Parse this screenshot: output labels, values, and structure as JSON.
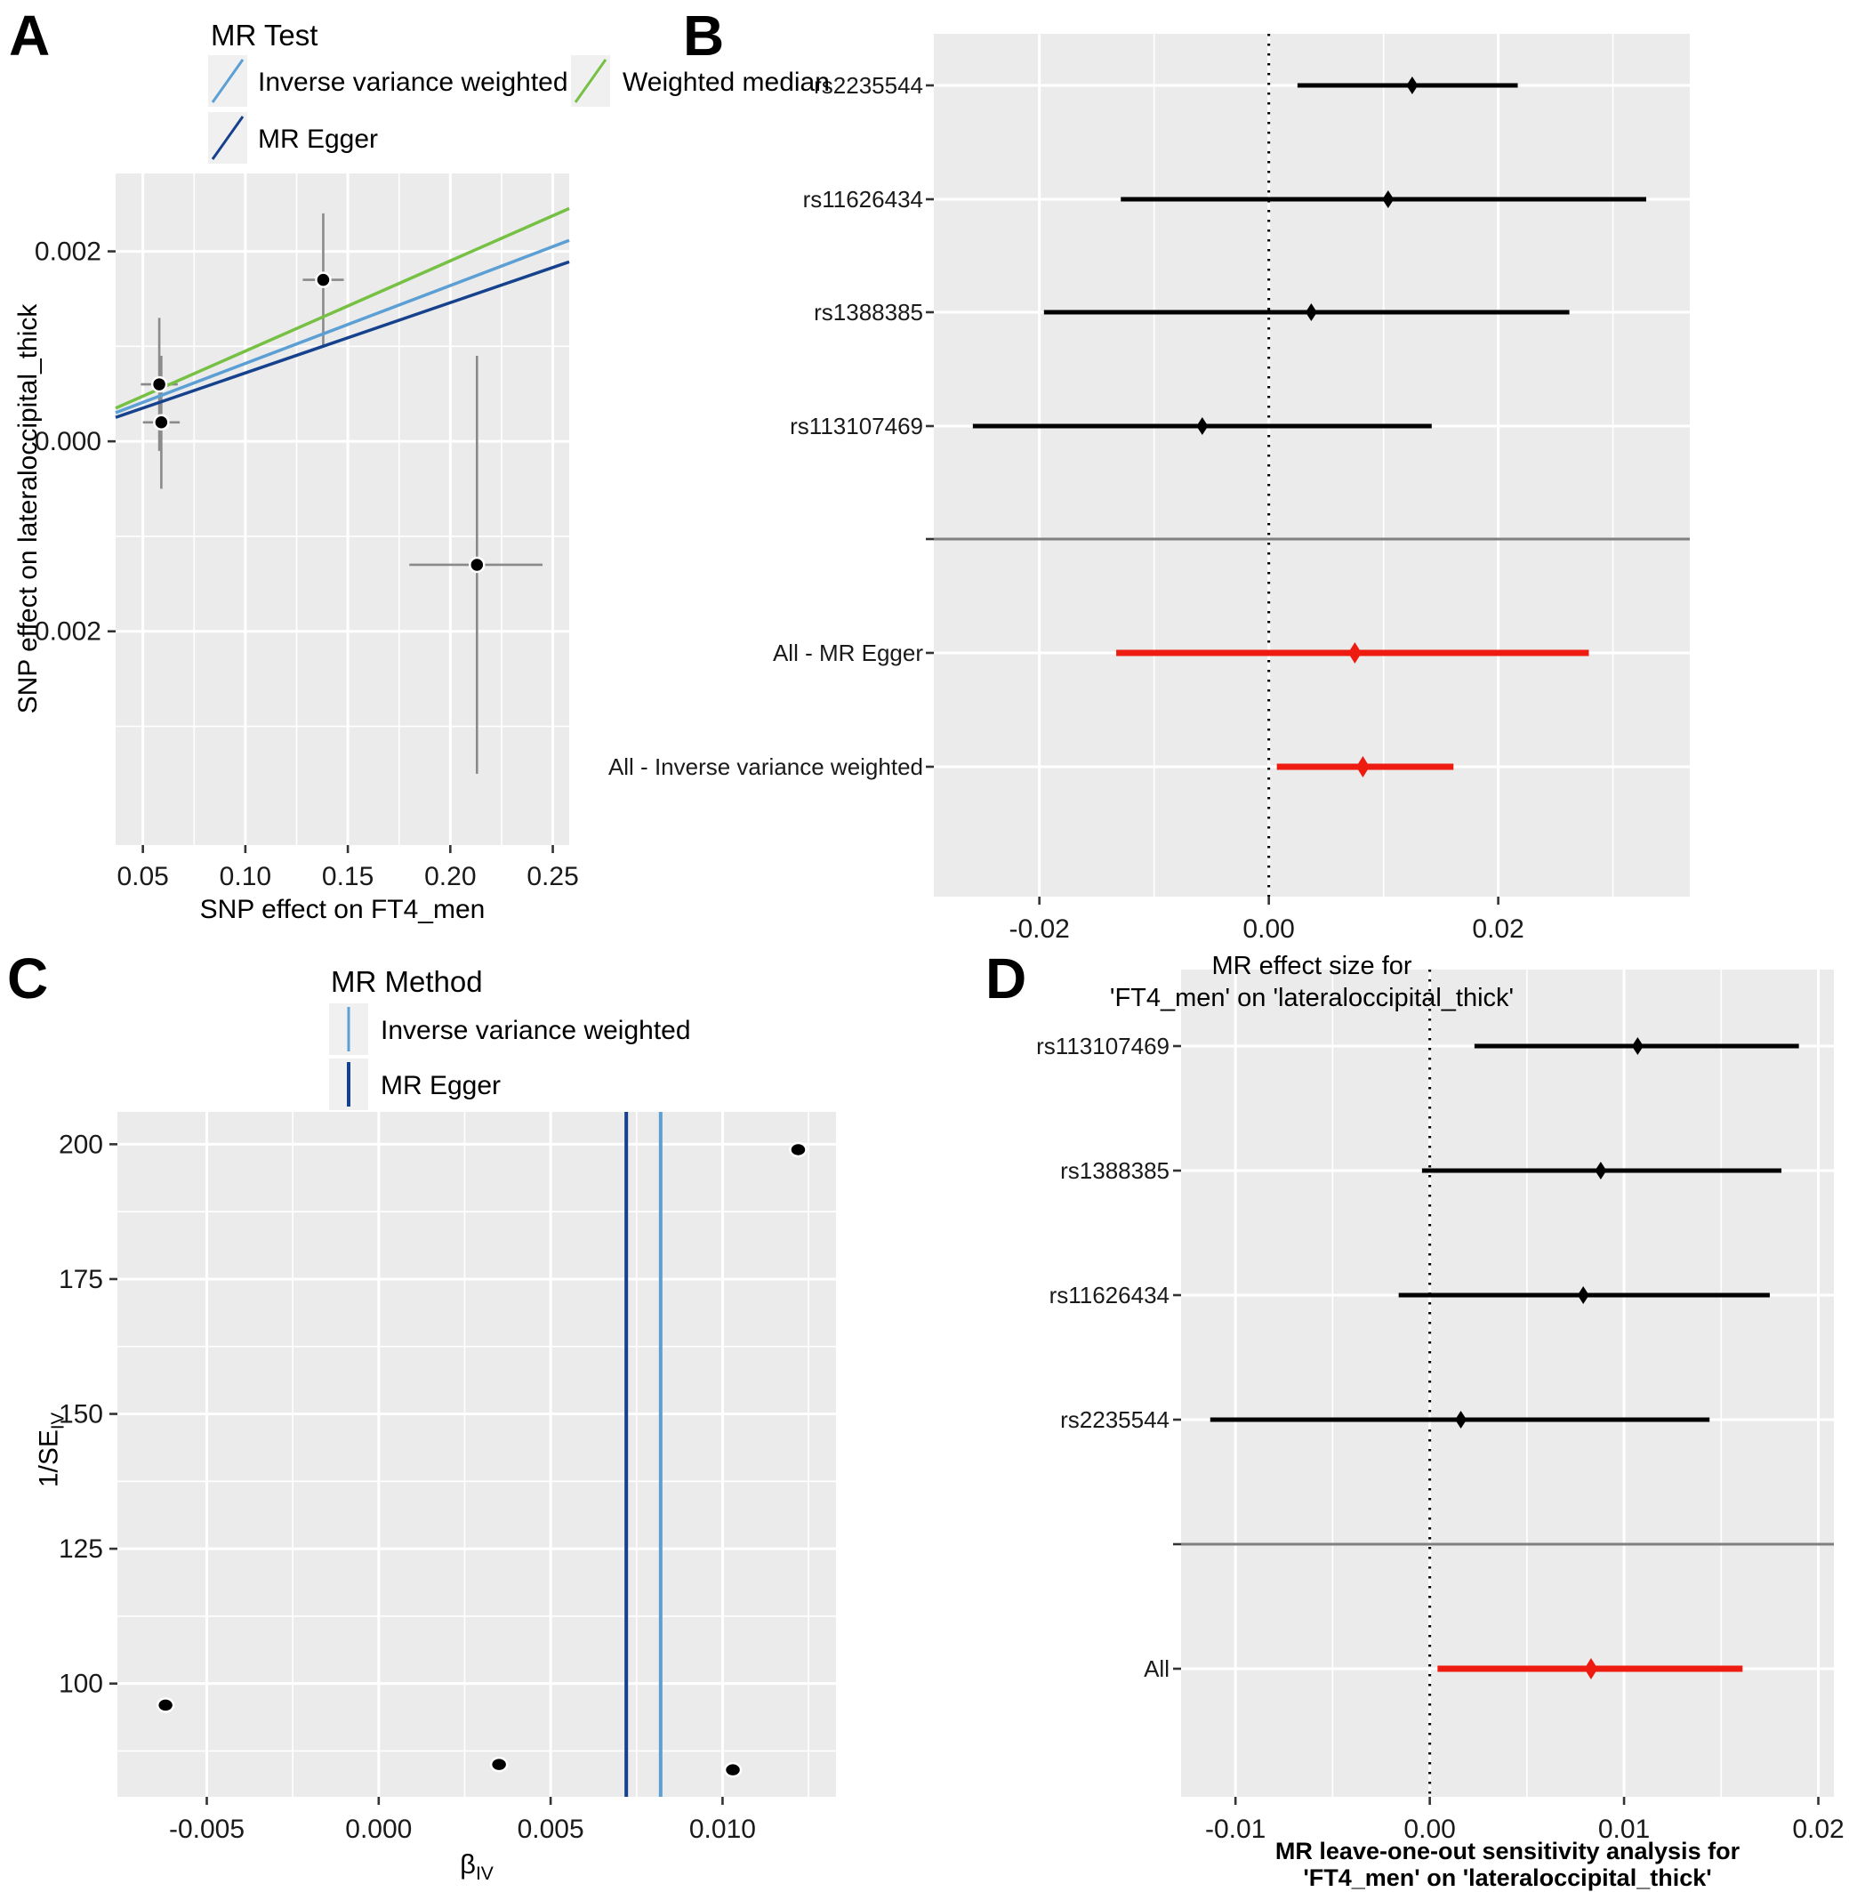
{
  "colors": {
    "ivw": "#5b9fd4",
    "egger": "#16418c",
    "wm": "#76c043",
    "all_red": "#ee1c10",
    "point": "#000000",
    "panel_bg": "#ebebeb",
    "grid": "#ffffff",
    "errbar": "#8a8a8a",
    "separator": "#7f7f7f",
    "tick_text": "#1a1a1a"
  },
  "panels": {
    "a_letter": "A",
    "b_letter": "B",
    "c_letter": "C",
    "d_letter": "D"
  },
  "legend_a": {
    "title": "MR Test",
    "items": [
      {
        "label": "Inverse variance weighted",
        "color_key": "ivw"
      },
      {
        "label": "Weighted median",
        "color_key": "wm"
      },
      {
        "label": "MR Egger",
        "color_key": "egger"
      }
    ]
  },
  "legend_c": {
    "title": "MR Method",
    "items": [
      {
        "label": "Inverse variance weighted",
        "color_key": "ivw"
      },
      {
        "label": "MR Egger",
        "color_key": "egger"
      }
    ]
  },
  "axis_titles": {
    "a_x": "SNP effect on FT4_men",
    "a_y": "SNP effect on lateraloccipital_thick",
    "b_x1": "MR effect size for",
    "b_x2": "'FT4_men' on 'lateraloccipital_thick'",
    "c_x_main": "β",
    "c_x_sub": "IV",
    "c_y_main": "1/SE",
    "c_y_sub": "IV",
    "d_x1": "MR leave-one-out sensitivity analysis for",
    "d_x2": "'FT4_men' on 'lateraloccipital_thick'"
  },
  "chart_data": [
    {
      "panel": "A",
      "type": "scatter",
      "title": "MR Test",
      "xlabel": "SNP effect on FT4_men",
      "ylabel": "SNP effect on lateraloccipital_thick",
      "xlim": [
        0.0367,
        0.258
      ],
      "ylim": [
        -0.00425,
        0.00282
      ],
      "xticks": [
        {
          "v": 0.05,
          "label": "0.05"
        },
        {
          "v": 0.1,
          "label": "0.10"
        },
        {
          "v": 0.15,
          "label": "0.15"
        },
        {
          "v": 0.2,
          "label": "0.20"
        },
        {
          "v": 0.25,
          "label": "0.25"
        }
      ],
      "yticks": [
        {
          "v": 0.002,
          "label": "0.002"
        },
        {
          "v": 0.0,
          "label": "0.000"
        },
        {
          "v": -0.002,
          "label": "-0.002"
        }
      ],
      "xminor": [
        0.075,
        0.125,
        0.175,
        0.225
      ],
      "yminor": [
        0.001,
        -0.001,
        -0.003
      ],
      "points": [
        {
          "x": 0.058,
          "y": 0.0006,
          "xlo": 0.049,
          "xhi": 0.067,
          "ylo": -0.0001,
          "yhi": 0.0013
        },
        {
          "x": 0.059,
          "y": 0.0002,
          "xlo": 0.05,
          "xhi": 0.068,
          "ylo": -0.0005,
          "yhi": 0.0009
        },
        {
          "x": 0.138,
          "y": 0.0017,
          "xlo": 0.128,
          "xhi": 0.148,
          "ylo": 0.001,
          "yhi": 0.0024
        },
        {
          "x": 0.213,
          "y": -0.0013,
          "xlo": 0.18,
          "xhi": 0.245,
          "ylo": -0.0035,
          "yhi": 0.0009
        }
      ],
      "lines": [
        {
          "method": "Inverse variance weighted",
          "slope": 0.0082,
          "intercept": 0.0,
          "color_key": "ivw"
        },
        {
          "method": "MR Egger",
          "slope": 0.0074,
          "intercept": -2e-05,
          "color_key": "egger"
        },
        {
          "method": "Weighted median",
          "slope": 0.0095,
          "intercept": 0.0,
          "color_key": "wm"
        }
      ]
    },
    {
      "panel": "B",
      "type": "forest",
      "xlabel_lines": [
        "MR effect size for",
        "'FT4_men' on 'lateraloccipital_thick'"
      ],
      "xlim": [
        -0.0292,
        0.0367
      ],
      "zero_line": 0.0,
      "xticks": [
        {
          "v": -0.02,
          "label": "-0.02"
        },
        {
          "v": 0.0,
          "label": "0.00"
        },
        {
          "v": 0.02,
          "label": "0.02"
        }
      ],
      "xminor": [
        -0.01,
        0.01,
        0.03
      ],
      "rows": [
        {
          "label": "rs2235544",
          "b": 0.0125,
          "lo": 0.0025,
          "hi": 0.0217,
          "color_key": "point"
        },
        {
          "label": "rs11626434",
          "b": 0.0104,
          "lo": -0.0129,
          "hi": 0.0329,
          "color_key": "point"
        },
        {
          "label": "rs1388385",
          "b": 0.0037,
          "lo": -0.0196,
          "hi": 0.0262,
          "color_key": "point"
        },
        {
          "label": "rs113107469",
          "b": -0.0058,
          "lo": -0.0258,
          "hi": 0.0142,
          "color_key": "point"
        },
        {
          "label": "",
          "separator": true
        },
        {
          "label": "All - MR Egger",
          "b": 0.0075,
          "lo": -0.0133,
          "hi": 0.0279,
          "color_key": "all_red"
        },
        {
          "label": "All - Inverse variance weighted",
          "b": 0.0082,
          "lo": 0.0007,
          "hi": 0.0161,
          "color_key": "all_red"
        }
      ]
    },
    {
      "panel": "C",
      "type": "funnel",
      "title": "MR Method",
      "xlim": [
        -0.0076,
        0.0133
      ],
      "ylim": [
        79,
        206
      ],
      "xticks": [
        {
          "v": -0.005,
          "label": "-0.005"
        },
        {
          "v": 0.0,
          "label": "0.000"
        },
        {
          "v": 0.005,
          "label": "0.005"
        },
        {
          "v": 0.01,
          "label": "0.010"
        }
      ],
      "yticks": [
        {
          "v": 100,
          "label": "100"
        },
        {
          "v": 125,
          "label": "125"
        },
        {
          "v": 150,
          "label": "150"
        },
        {
          "v": 175,
          "label": "175"
        },
        {
          "v": 200,
          "label": "200"
        }
      ],
      "xminor": [
        -0.0025,
        0.0025,
        0.0075,
        0.0125
      ],
      "yminor": [
        87.5,
        112.5,
        137.5,
        162.5,
        187.5
      ],
      "points": [
        {
          "x": -0.0062,
          "y": 96
        },
        {
          "x": 0.0035,
          "y": 85
        },
        {
          "x": 0.0103,
          "y": 84
        },
        {
          "x": 0.0122,
          "y": 199
        }
      ],
      "vlines": [
        {
          "method": "MR Egger",
          "x": 0.0072,
          "color_key": "egger"
        },
        {
          "method": "Inverse variance weighted",
          "x": 0.0082,
          "color_key": "ivw"
        }
      ]
    },
    {
      "panel": "D",
      "type": "forest",
      "xlabel_lines": [
        "MR leave-one-out sensitivity analysis for",
        "'FT4_men' on 'lateraloccipital_thick'"
      ],
      "xlim": [
        -0.0128,
        0.0208
      ],
      "zero_line": 0.0,
      "xticks": [
        {
          "v": -0.01,
          "label": "-0.01"
        },
        {
          "v": 0.0,
          "label": "0.00"
        },
        {
          "v": 0.01,
          "label": "0.01"
        },
        {
          "v": 0.02,
          "label": "0.02"
        }
      ],
      "xminor": [
        -0.005,
        0.005,
        0.015
      ],
      "rows": [
        {
          "label": "rs113107469",
          "b": 0.0107,
          "lo": 0.0023,
          "hi": 0.019,
          "color_key": "point"
        },
        {
          "label": "rs1388385",
          "b": 0.0088,
          "lo": -0.0004,
          "hi": 0.0181,
          "color_key": "point"
        },
        {
          "label": "rs11626434",
          "b": 0.0079,
          "lo": -0.0016,
          "hi": 0.0175,
          "color_key": "point"
        },
        {
          "label": "rs2235544",
          "b": 0.0016,
          "lo": -0.0113,
          "hi": 0.0144,
          "color_key": "point"
        },
        {
          "label": "",
          "separator": true
        },
        {
          "label": "All",
          "b": 0.0083,
          "lo": 0.0004,
          "hi": 0.0161,
          "color_key": "all_red"
        }
      ]
    }
  ]
}
